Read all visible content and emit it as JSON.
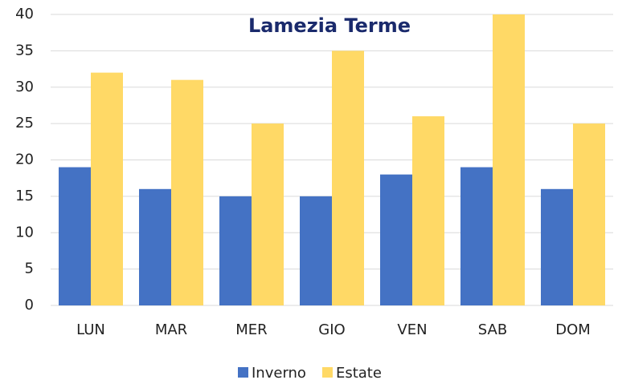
{
  "chart_data": {
    "type": "bar",
    "title": "Lamezia Terme",
    "categories": [
      "LUN",
      "MAR",
      "MER",
      "GIO",
      "VEN",
      "SAB",
      "DOM"
    ],
    "series": [
      {
        "name": "Inverno",
        "color": "#4472c4",
        "values": [
          19,
          16,
          15,
          15,
          18,
          19,
          16
        ]
      },
      {
        "name": "Estate",
        "color": "#ffd966",
        "values": [
          32,
          31,
          25,
          35,
          26,
          40,
          25
        ]
      }
    ],
    "ylim": [
      0,
      40
    ],
    "yticks": [
      0,
      5,
      10,
      15,
      20,
      25,
      30,
      35,
      40
    ],
    "grid": true,
    "legend": "bottom"
  }
}
